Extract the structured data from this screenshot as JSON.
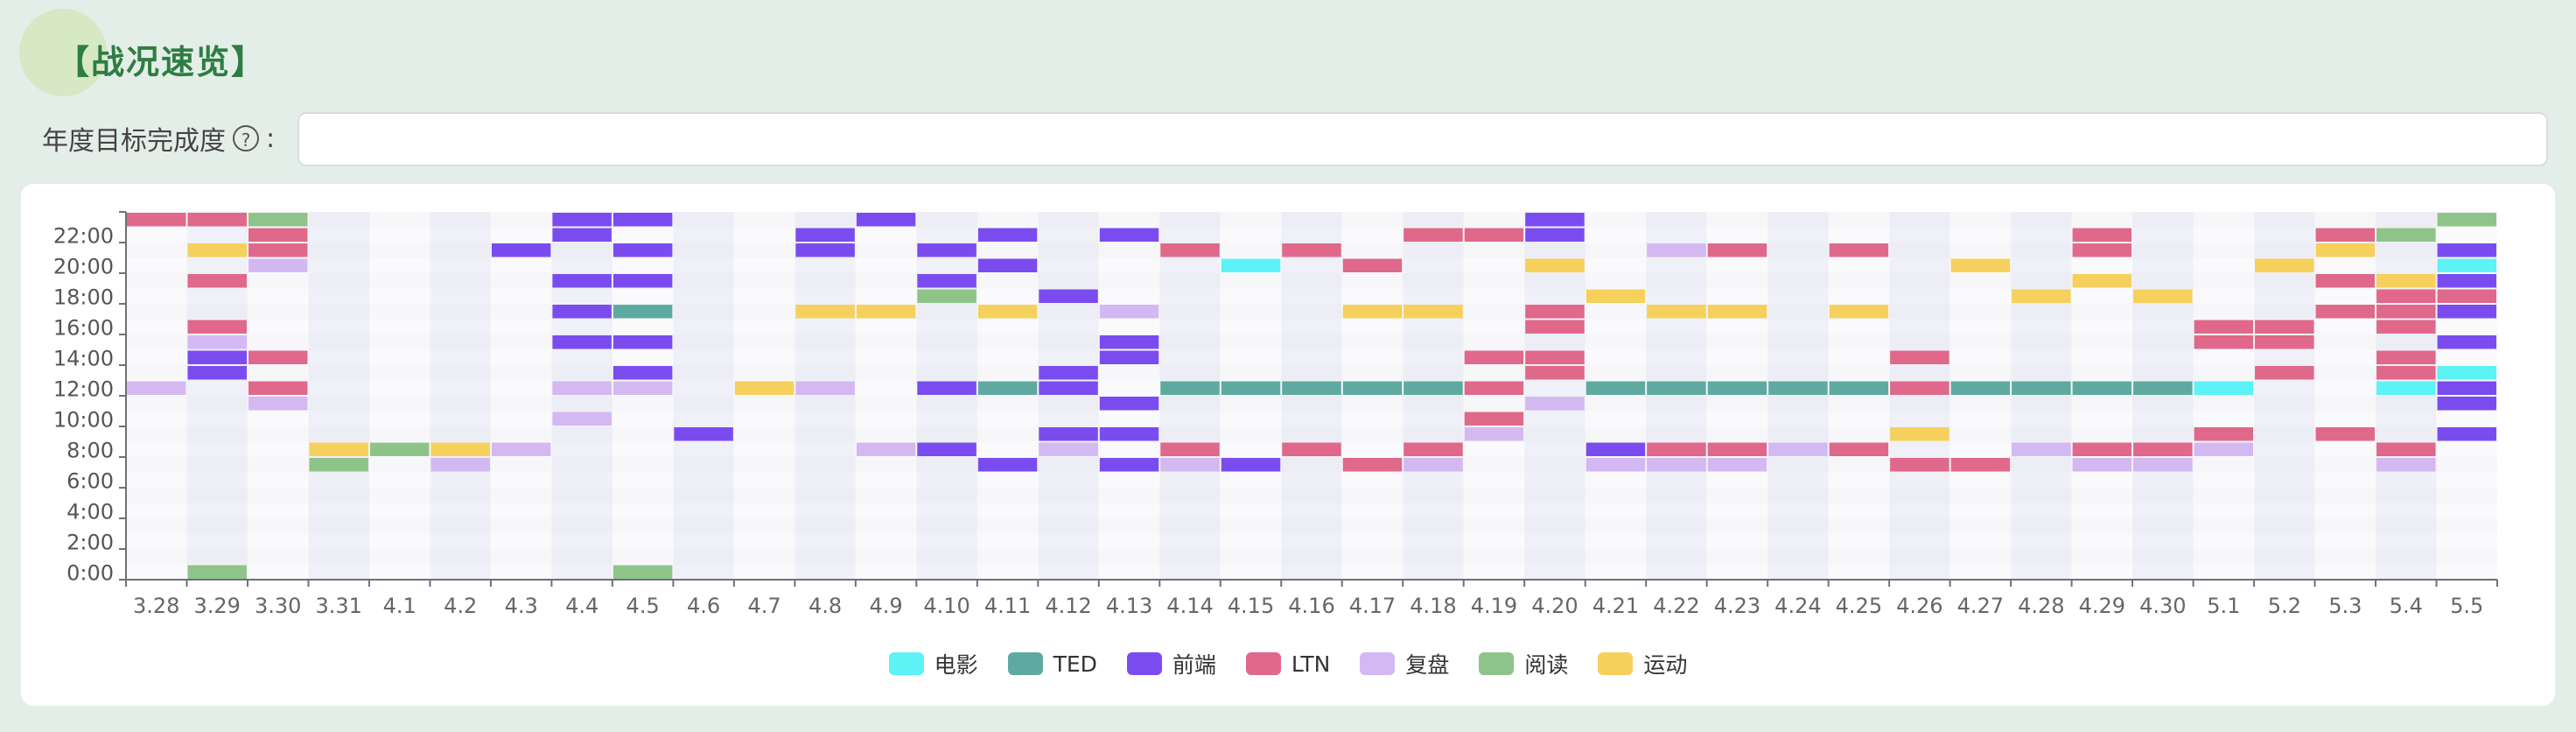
{
  "header": {
    "title": "【战况速览】"
  },
  "goal": {
    "label": "年度目标完成度",
    "help_icon": "question-circle-icon",
    "colon": ":",
    "value": ""
  },
  "chart_data": {
    "type": "heatmap",
    "title": "",
    "xlabel": "",
    "ylabel": "",
    "grid": false,
    "legend_position": "bottom",
    "x": [
      "3.28",
      "3.29",
      "3.30",
      "3.31",
      "4.1",
      "4.2",
      "4.3",
      "4.4",
      "4.5",
      "4.6",
      "4.7",
      "4.8",
      "4.9",
      "4.10",
      "4.11",
      "4.12",
      "4.13",
      "4.14",
      "4.15",
      "4.16",
      "4.17",
      "4.18",
      "4.19",
      "4.20",
      "4.21",
      "4.22",
      "4.23",
      "4.24",
      "4.25",
      "4.26",
      "4.27",
      "4.28",
      "4.29",
      "4.30",
      "5.1",
      "5.2",
      "5.3",
      "5.4",
      "5.5"
    ],
    "y_ticks": [
      "0:00",
      "2:00",
      "4:00",
      "6:00",
      "8:00",
      "10:00",
      "12:00",
      "14:00",
      "16:00",
      "18:00",
      "20:00",
      "22:00"
    ],
    "y_range_hours": [
      0,
      24
    ],
    "categories": [
      {
        "name": "电影",
        "color": "#5cf2f6"
      },
      {
        "name": "TED",
        "color": "#5eaaa0"
      },
      {
        "name": "前端",
        "color": "#7a4cf0"
      },
      {
        "name": "LTN",
        "color": "#e0688a"
      },
      {
        "name": "复盘",
        "color": "#d4b8f2"
      },
      {
        "name": "阅读",
        "color": "#8ec48a"
      },
      {
        "name": "运动",
        "color": "#f6d05c"
      }
    ],
    "cells": [
      [
        "3.28",
        23,
        "LTN"
      ],
      [
        "3.28",
        12,
        "复盘"
      ],
      [
        "3.29",
        23,
        "LTN"
      ],
      [
        "3.29",
        21,
        "运动"
      ],
      [
        "3.29",
        19,
        "LTN"
      ],
      [
        "3.29",
        16,
        "LTN"
      ],
      [
        "3.29",
        15,
        "复盘"
      ],
      [
        "3.29",
        14,
        "前端"
      ],
      [
        "3.29",
        13,
        "前端"
      ],
      [
        "3.29",
        0,
        "阅读"
      ],
      [
        "3.30",
        23,
        "阅读"
      ],
      [
        "3.30",
        22,
        "LTN"
      ],
      [
        "3.30",
        21,
        "LTN"
      ],
      [
        "3.30",
        20,
        "复盘"
      ],
      [
        "3.30",
        14,
        "LTN"
      ],
      [
        "3.30",
        12,
        "LTN"
      ],
      [
        "3.30",
        11,
        "复盘"
      ],
      [
        "3.31",
        8,
        "运动"
      ],
      [
        "3.31",
        7,
        "阅读"
      ],
      [
        "4.1",
        8,
        "阅读"
      ],
      [
        "4.2",
        8,
        "运动"
      ],
      [
        "4.2",
        7,
        "复盘"
      ],
      [
        "4.3",
        21,
        "前端"
      ],
      [
        "4.3",
        8,
        "复盘"
      ],
      [
        "4.4",
        23,
        "前端"
      ],
      [
        "4.4",
        22,
        "前端"
      ],
      [
        "4.4",
        19,
        "前端"
      ],
      [
        "4.4",
        17,
        "前端"
      ],
      [
        "4.4",
        15,
        "前端"
      ],
      [
        "4.4",
        12,
        "复盘"
      ],
      [
        "4.4",
        10,
        "复盘"
      ],
      [
        "4.5",
        23,
        "前端"
      ],
      [
        "4.5",
        21,
        "前端"
      ],
      [
        "4.5",
        19,
        "前端"
      ],
      [
        "4.5",
        17,
        "TED"
      ],
      [
        "4.5",
        15,
        "前端"
      ],
      [
        "4.5",
        13,
        "前端"
      ],
      [
        "4.5",
        12,
        "复盘"
      ],
      [
        "4.5",
        0,
        "阅读"
      ],
      [
        "4.6",
        9,
        "前端"
      ],
      [
        "4.7",
        12,
        "运动"
      ],
      [
        "4.8",
        22,
        "前端"
      ],
      [
        "4.8",
        21,
        "前端"
      ],
      [
        "4.8",
        17,
        "运动"
      ],
      [
        "4.8",
        12,
        "复盘"
      ],
      [
        "4.9",
        23,
        "前端"
      ],
      [
        "4.9",
        17,
        "运动"
      ],
      [
        "4.9",
        8,
        "复盘"
      ],
      [
        "4.10",
        21,
        "前端"
      ],
      [
        "4.10",
        19,
        "前端"
      ],
      [
        "4.10",
        18,
        "阅读"
      ],
      [
        "4.10",
        12,
        "前端"
      ],
      [
        "4.10",
        8,
        "前端"
      ],
      [
        "4.11",
        22,
        "前端"
      ],
      [
        "4.11",
        20,
        "前端"
      ],
      [
        "4.11",
        17,
        "运动"
      ],
      [
        "4.11",
        12,
        "TED"
      ],
      [
        "4.11",
        7,
        "前端"
      ],
      [
        "4.12",
        18,
        "前端"
      ],
      [
        "4.12",
        13,
        "前端"
      ],
      [
        "4.12",
        12,
        "前端"
      ],
      [
        "4.12",
        9,
        "前端"
      ],
      [
        "4.12",
        8,
        "复盘"
      ],
      [
        "4.13",
        22,
        "前端"
      ],
      [
        "4.13",
        17,
        "复盘"
      ],
      [
        "4.13",
        15,
        "前端"
      ],
      [
        "4.13",
        14,
        "前端"
      ],
      [
        "4.13",
        11,
        "前端"
      ],
      [
        "4.13",
        9,
        "前端"
      ],
      [
        "4.13",
        7,
        "前端"
      ],
      [
        "4.14",
        21,
        "LTN"
      ],
      [
        "4.14",
        12,
        "TED"
      ],
      [
        "4.14",
        8,
        "LTN"
      ],
      [
        "4.14",
        7,
        "复盘"
      ],
      [
        "4.15",
        20,
        "电影"
      ],
      [
        "4.15",
        12,
        "TED"
      ],
      [
        "4.15",
        7,
        "前端"
      ],
      [
        "4.16",
        21,
        "LTN"
      ],
      [
        "4.16",
        12,
        "TED"
      ],
      [
        "4.16",
        8,
        "LTN"
      ],
      [
        "4.17",
        20,
        "LTN"
      ],
      [
        "4.17",
        17,
        "运动"
      ],
      [
        "4.17",
        12,
        "TED"
      ],
      [
        "4.17",
        7,
        "LTN"
      ],
      [
        "4.18",
        22,
        "LTN"
      ],
      [
        "4.18",
        17,
        "运动"
      ],
      [
        "4.18",
        12,
        "TED"
      ],
      [
        "4.18",
        8,
        "LTN"
      ],
      [
        "4.18",
        7,
        "复盘"
      ],
      [
        "4.19",
        22,
        "LTN"
      ],
      [
        "4.19",
        14,
        "LTN"
      ],
      [
        "4.19",
        12,
        "LTN"
      ],
      [
        "4.19",
        10,
        "LTN"
      ],
      [
        "4.19",
        9,
        "复盘"
      ],
      [
        "4.20",
        23,
        "前端"
      ],
      [
        "4.20",
        22,
        "前端"
      ],
      [
        "4.20",
        20,
        "运动"
      ],
      [
        "4.20",
        17,
        "LTN"
      ],
      [
        "4.20",
        16,
        "LTN"
      ],
      [
        "4.20",
        14,
        "LTN"
      ],
      [
        "4.20",
        13,
        "LTN"
      ],
      [
        "4.20",
        11,
        "复盘"
      ],
      [
        "4.21",
        18,
        "运动"
      ],
      [
        "4.21",
        12,
        "TED"
      ],
      [
        "4.21",
        8,
        "前端"
      ],
      [
        "4.21",
        7,
        "复盘"
      ],
      [
        "4.22",
        21,
        "复盘"
      ],
      [
        "4.22",
        17,
        "运动"
      ],
      [
        "4.22",
        12,
        "TED"
      ],
      [
        "4.22",
        8,
        "LTN"
      ],
      [
        "4.22",
        7,
        "复盘"
      ],
      [
        "4.23",
        21,
        "LTN"
      ],
      [
        "4.23",
        17,
        "运动"
      ],
      [
        "4.23",
        12,
        "TED"
      ],
      [
        "4.23",
        8,
        "LTN"
      ],
      [
        "4.23",
        7,
        "复盘"
      ],
      [
        "4.24",
        12,
        "TED"
      ],
      [
        "4.24",
        8,
        "复盘"
      ],
      [
        "4.25",
        21,
        "LTN"
      ],
      [
        "4.25",
        17,
        "运动"
      ],
      [
        "4.25",
        12,
        "TED"
      ],
      [
        "4.25",
        8,
        "LTN"
      ],
      [
        "4.26",
        14,
        "LTN"
      ],
      [
        "4.26",
        12,
        "LTN"
      ],
      [
        "4.26",
        9,
        "运动"
      ],
      [
        "4.26",
        7,
        "LTN"
      ],
      [
        "4.27",
        20,
        "运动"
      ],
      [
        "4.27",
        12,
        "TED"
      ],
      [
        "4.27",
        7,
        "LTN"
      ],
      [
        "4.28",
        18,
        "运动"
      ],
      [
        "4.28",
        12,
        "TED"
      ],
      [
        "4.28",
        8,
        "复盘"
      ],
      [
        "4.29",
        22,
        "LTN"
      ],
      [
        "4.29",
        21,
        "LTN"
      ],
      [
        "4.29",
        19,
        "运动"
      ],
      [
        "4.29",
        12,
        "TED"
      ],
      [
        "4.29",
        8,
        "LTN"
      ],
      [
        "4.29",
        7,
        "复盘"
      ],
      [
        "4.30",
        18,
        "运动"
      ],
      [
        "4.30",
        12,
        "TED"
      ],
      [
        "4.30",
        8,
        "LTN"
      ],
      [
        "4.30",
        7,
        "复盘"
      ],
      [
        "5.1",
        16,
        "LTN"
      ],
      [
        "5.1",
        15,
        "LTN"
      ],
      [
        "5.1",
        12,
        "电影"
      ],
      [
        "5.1",
        9,
        "LTN"
      ],
      [
        "5.1",
        8,
        "复盘"
      ],
      [
        "5.2",
        20,
        "运动"
      ],
      [
        "5.2",
        16,
        "LTN"
      ],
      [
        "5.2",
        15,
        "LTN"
      ],
      [
        "5.2",
        13,
        "LTN"
      ],
      [
        "5.3",
        22,
        "LTN"
      ],
      [
        "5.3",
        21,
        "运动"
      ],
      [
        "5.3",
        19,
        "LTN"
      ],
      [
        "5.3",
        17,
        "LTN"
      ],
      [
        "5.3",
        9,
        "LTN"
      ],
      [
        "5.4",
        22,
        "阅读"
      ],
      [
        "5.4",
        19,
        "运动"
      ],
      [
        "5.4",
        18,
        "LTN"
      ],
      [
        "5.4",
        17,
        "LTN"
      ],
      [
        "5.4",
        16,
        "LTN"
      ],
      [
        "5.4",
        14,
        "LTN"
      ],
      [
        "5.4",
        13,
        "LTN"
      ],
      [
        "5.4",
        12,
        "电影"
      ],
      [
        "5.4",
        8,
        "LTN"
      ],
      [
        "5.4",
        7,
        "复盘"
      ],
      [
        "5.5",
        23,
        "阅读"
      ],
      [
        "5.5",
        21,
        "前端"
      ],
      [
        "5.5",
        20,
        "电影"
      ],
      [
        "5.5",
        19,
        "前端"
      ],
      [
        "5.5",
        18,
        "LTN"
      ],
      [
        "5.5",
        17,
        "前端"
      ],
      [
        "5.5",
        15,
        "前端"
      ],
      [
        "5.5",
        13,
        "电影"
      ],
      [
        "5.5",
        12,
        "前端"
      ],
      [
        "5.5",
        11,
        "前端"
      ],
      [
        "5.5",
        9,
        "前端"
      ]
    ]
  }
}
